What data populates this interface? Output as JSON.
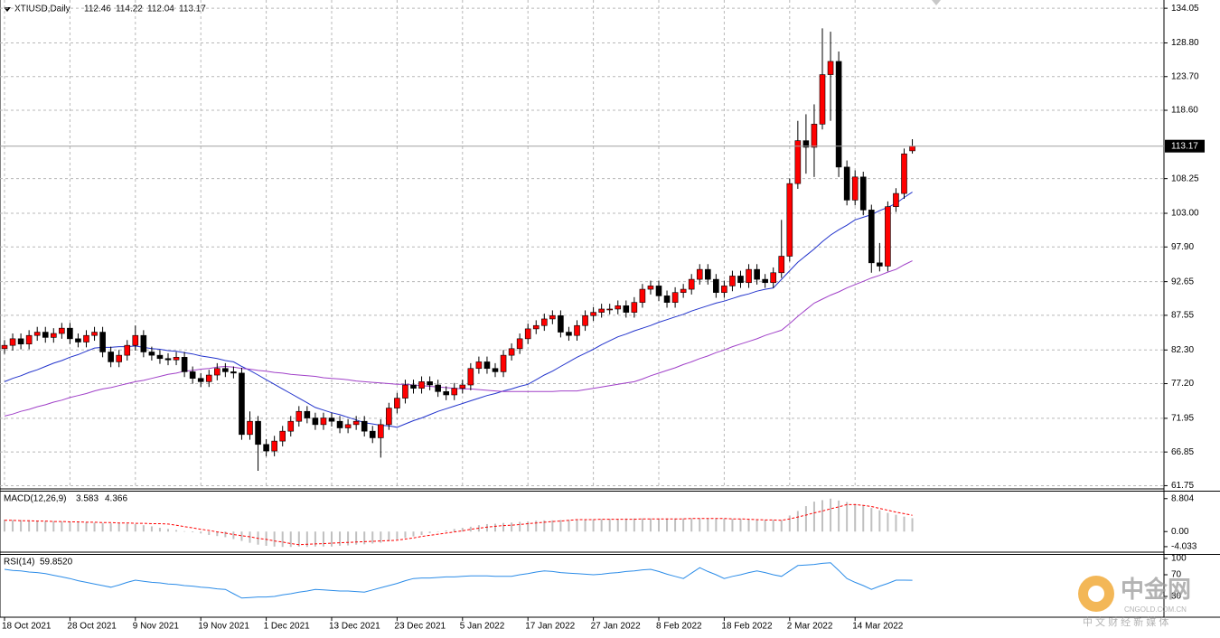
{
  "chart_data": [
    {
      "type": "candlestick",
      "title": "XTIUSD,Daily",
      "categories": [
        "18 Oct 2021",
        null,
        null,
        null,
        null,
        null,
        null,
        null,
        "28 Oct 2021",
        null,
        null,
        null,
        null,
        null,
        null,
        null,
        "9 Nov 2021",
        null,
        null,
        null,
        null,
        null,
        null,
        null,
        "19 Nov 2021",
        null,
        null,
        null,
        null,
        null,
        null,
        null,
        "1 Dec 2021",
        null,
        null,
        null,
        null,
        null,
        null,
        null,
        "13 Dec 2021",
        null,
        null,
        null,
        null,
        null,
        null,
        null,
        "23 Dec 2021",
        null,
        null,
        null,
        null,
        null,
        null,
        null,
        "5 Jan 2022",
        null,
        null,
        null,
        null,
        null,
        null,
        null,
        "17 Jan 2022",
        null,
        null,
        null,
        null,
        null,
        null,
        null,
        "27 Jan 2022",
        null,
        null,
        null,
        null,
        null,
        null,
        null,
        "8 Feb 2022",
        null,
        null,
        null,
        null,
        null,
        null,
        null,
        "18 Feb 2022",
        null,
        null,
        null,
        null,
        null,
        null,
        null,
        "2 Mar 2022",
        null,
        null,
        null,
        null,
        null,
        null,
        null,
        "14 Mar 2022",
        null,
        null,
        null,
        null,
        null,
        null,
        null
      ],
      "open": [
        82.5,
        83.0,
        84.0,
        83.2,
        84.5,
        85.0,
        84.2,
        84.8,
        85.6,
        84.0,
        83.5,
        84.5,
        85.0,
        82.0,
        80.5,
        81.5,
        83.0,
        84.5,
        82.0,
        81.5,
        81.0,
        80.8,
        81.2,
        79.0,
        78.0,
        77.5,
        78.5,
        79.5,
        79.0,
        78.8,
        69.5,
        71.5,
        68.0,
        67.0,
        68.5,
        70.0,
        71.5,
        73.0,
        72.0,
        71.0,
        72.0,
        71.5,
        70.5,
        71.0,
        71.5,
        70.0,
        69.0,
        71.0,
        73.5,
        75.0,
        77.0,
        76.5,
        77.5,
        77.0,
        76.0,
        75.5,
        76.5,
        77.0,
        79.5,
        80.5,
        79.5,
        79.0,
        81.5,
        82.5,
        84.0,
        85.5,
        86.0,
        87.0,
        87.5,
        85.0,
        84.5,
        86.0,
        87.5,
        88.0,
        88.5,
        88.5,
        89.0,
        88.0,
        89.5,
        91.5,
        92.0,
        90.5,
        89.5,
        91.0,
        91.5,
        93.0,
        94.5,
        93.0,
        91.0,
        92.0,
        93.5,
        92.5,
        94.5,
        93.0,
        92.5,
        94.0,
        96.5,
        107.5,
        114.0,
        113.0,
        116.5,
        124.0,
        126.0,
        110.0,
        105.0,
        108.5,
        103.5,
        95.5,
        95.0,
        104.0,
        106.0,
        112.46
      ],
      "high": [
        83.8,
        84.8,
        84.8,
        85.3,
        85.8,
        85.8,
        85.6,
        86.4,
        86.4,
        84.8,
        85.3,
        85.8,
        85.8,
        82.8,
        82.3,
        83.8,
        86.0,
        85.3,
        82.8,
        82.3,
        81.8,
        82.0,
        82.0,
        79.8,
        78.8,
        79.3,
        80.3,
        80.3,
        79.8,
        79.6,
        73.0,
        72.3,
        68.8,
        69.3,
        70.8,
        72.3,
        73.8,
        73.8,
        72.8,
        72.8,
        72.8,
        72.3,
        71.8,
        72.3,
        72.3,
        70.8,
        71.8,
        74.3,
        75.8,
        77.8,
        77.8,
        78.3,
        78.3,
        77.8,
        76.8,
        77.3,
        77.8,
        80.3,
        81.3,
        81.3,
        80.3,
        82.3,
        83.3,
        84.8,
        86.3,
        86.8,
        87.8,
        88.3,
        88.3,
        85.8,
        86.8,
        88.3,
        88.8,
        89.3,
        89.3,
        89.8,
        89.8,
        90.3,
        92.3,
        92.8,
        92.8,
        91.3,
        91.8,
        92.3,
        93.8,
        95.3,
        95.3,
        93.8,
        92.8,
        94.3,
        94.3,
        95.3,
        95.3,
        93.8,
        94.8,
        102.0,
        108.3,
        117.0,
        118.0,
        119.5,
        131.0,
        130.5,
        127.5,
        111.0,
        109.5,
        109.3,
        104.3,
        98.5,
        104.8,
        106.8,
        112.8,
        114.22
      ],
      "low": [
        81.7,
        82.2,
        82.4,
        82.4,
        83.7,
        83.4,
        83.4,
        84.0,
        83.2,
        82.7,
        82.7,
        83.7,
        81.2,
        79.7,
        79.7,
        80.7,
        82.2,
        81.2,
        80.7,
        80.2,
        80.0,
        80.0,
        78.2,
        77.2,
        76.7,
        76.7,
        77.7,
        78.2,
        78.0,
        68.7,
        68.7,
        64.0,
        66.2,
        66.2,
        67.7,
        69.2,
        70.7,
        71.2,
        70.2,
        70.2,
        70.7,
        69.7,
        69.7,
        70.2,
        69.2,
        68.2,
        66.0,
        70.2,
        72.7,
        74.2,
        75.7,
        75.7,
        76.2,
        75.2,
        74.7,
        74.7,
        75.7,
        76.2,
        78.7,
        78.7,
        78.2,
        78.2,
        80.7,
        81.7,
        83.2,
        84.7,
        85.2,
        86.2,
        84.2,
        83.7,
        83.7,
        85.2,
        86.7,
        87.2,
        87.7,
        87.7,
        87.2,
        87.2,
        88.7,
        90.7,
        89.7,
        88.7,
        88.7,
        90.2,
        90.7,
        92.2,
        92.2,
        90.2,
        90.2,
        91.2,
        91.7,
        91.7,
        92.2,
        91.7,
        91.7,
        93.2,
        95.7,
        106.7,
        109.0,
        108.5,
        115.7,
        117.0,
        108.5,
        104.2,
        104.2,
        102.7,
        94.0,
        94.2,
        94.2,
        103.2,
        105.2,
        112.04
      ],
      "close": [
        83.0,
        84.0,
        83.2,
        84.5,
        85.0,
        84.2,
        84.8,
        85.6,
        84.0,
        83.5,
        84.5,
        85.0,
        82.0,
        80.5,
        81.5,
        83.0,
        84.5,
        82.0,
        81.5,
        81.0,
        80.8,
        81.2,
        79.0,
        78.0,
        77.5,
        78.5,
        79.5,
        79.0,
        78.8,
        69.5,
        71.5,
        68.0,
        67.0,
        68.5,
        70.0,
        71.5,
        73.0,
        72.0,
        71.0,
        72.0,
        71.5,
        70.5,
        71.0,
        71.5,
        70.0,
        69.0,
        71.0,
        73.5,
        75.0,
        77.0,
        76.5,
        77.5,
        77.0,
        76.0,
        75.5,
        76.5,
        77.0,
        79.5,
        80.5,
        79.5,
        79.0,
        81.5,
        82.5,
        84.0,
        85.5,
        86.0,
        87.0,
        87.5,
        85.0,
        84.5,
        86.0,
        87.5,
        88.0,
        88.5,
        88.5,
        89.0,
        88.0,
        89.5,
        91.5,
        92.0,
        90.5,
        89.5,
        91.0,
        91.5,
        93.0,
        94.5,
        93.0,
        91.0,
        92.0,
        93.5,
        92.5,
        94.5,
        93.0,
        92.5,
        94.0,
        96.5,
        107.5,
        114.0,
        113.0,
        116.5,
        124.0,
        126.0,
        110.0,
        105.0,
        108.5,
        103.5,
        95.5,
        95.0,
        104.0,
        106.0,
        112.0,
        113.17
      ],
      "up_color": "#ff0000",
      "down_color": "#000000",
      "series": [
        {
          "color": "#2233cc",
          "values": [
            77.5,
            78.0,
            78.4,
            78.9,
            79.3,
            79.8,
            80.3,
            80.7,
            81.2,
            81.6,
            82.1,
            82.6,
            82.7,
            82.7,
            82.8,
            82.8,
            82.9,
            82.7,
            82.5,
            82.4,
            82.2,
            82.1,
            81.9,
            81.7,
            81.4,
            81.2,
            81.0,
            80.7,
            80.5,
            79.8,
            79.2,
            78.5,
            77.8,
            77.1,
            76.4,
            75.7,
            75.0,
            74.3,
            73.6,
            73.2,
            72.8,
            72.5,
            72.1,
            71.7,
            71.3,
            71.1,
            70.9,
            70.8,
            70.6,
            71.1,
            71.6,
            72.0,
            72.5,
            73.0,
            73.4,
            73.8,
            74.2,
            74.6,
            75.0,
            75.4,
            75.7,
            76.1,
            76.4,
            76.8,
            77.1,
            77.8,
            78.5,
            79.1,
            79.8,
            80.5,
            81.2,
            81.8,
            82.4,
            83.1,
            83.7,
            84.3,
            84.7,
            85.2,
            85.6,
            86.0,
            86.5,
            86.9,
            87.3,
            87.7,
            88.2,
            88.6,
            89.0,
            89.4,
            89.7,
            90.1,
            90.5,
            90.8,
            91.2,
            91.5,
            91.7,
            93.0,
            94.3,
            95.6,
            96.6,
            97.6,
            98.7,
            99.7,
            100.5,
            101.2,
            102.0,
            102.4,
            102.8,
            103.4,
            103.9,
            104.5,
            105.4,
            106.2
          ]
        },
        {
          "color": "#a040c8",
          "values": [
            72.3,
            72.6,
            73.0,
            73.3,
            73.7,
            74.0,
            74.4,
            74.7,
            75.1,
            75.4,
            75.7,
            76.1,
            76.4,
            76.6,
            76.9,
            77.2,
            77.5,
            77.7,
            78.0,
            78.3,
            78.6,
            78.8,
            79.1,
            79.2,
            79.4,
            79.5,
            79.7,
            79.8,
            79.7,
            79.5,
            79.4,
            79.2,
            79.1,
            78.9,
            78.8,
            78.6,
            78.5,
            78.4,
            78.3,
            78.1,
            78.0,
            77.9,
            77.8,
            77.6,
            77.5,
            77.4,
            77.3,
            77.2,
            77.1,
            77.1,
            77.0,
            76.9,
            76.8,
            76.7,
            76.6,
            76.5,
            76.4,
            76.4,
            76.3,
            76.2,
            76.1,
            76.0,
            76.0,
            76.0,
            76.0,
            76.0,
            76.0,
            76.0,
            76.1,
            76.1,
            76.1,
            76.3,
            76.5,
            76.7,
            76.9,
            77.1,
            77.3,
            77.5,
            77.9,
            78.4,
            78.8,
            79.2,
            79.6,
            80.1,
            80.5,
            81.0,
            81.4,
            81.9,
            82.3,
            82.8,
            83.2,
            83.6,
            84.0,
            84.5,
            84.9,
            85.3,
            86.3,
            87.4,
            88.4,
            89.4,
            90.0,
            90.6,
            91.1,
            91.7,
            92.2,
            92.7,
            93.2,
            93.6,
            94.1,
            94.5,
            95.2,
            95.8
          ]
        }
      ],
      "ylim": [
        61.4,
        135.3
      ],
      "yticks": [
        134.05,
        {
          "value": 128.8,
          "label": "128.80"
        },
        {
          "value": 123.7,
          "label": "123.70"
        },
        {
          "value": 118.6,
          "label": "118.60"
        },
        {
          "value": 108.25,
          "label": "108.25"
        },
        {
          "value": 103,
          "label": "103.00"
        },
        {
          "value": 97.9,
          "label": "97.90"
        },
        {
          "value": 92.65,
          "label": "92.65"
        },
        {
          "value": 87.55,
          "label": "87.55"
        },
        {
          "value": 82.3,
          "label": "82.30"
        },
        {
          "value": 77.2,
          "label": "77.20"
        },
        {
          "value": 71.95,
          "label": "71.95"
        },
        {
          "value": 66.85,
          "label": "66.85"
        },
        {
          "value": 61.75,
          "label": "61.75"
        }
      ],
      "grid": true
    },
    {
      "type": "macd",
      "title": "MACD(12,26,9)",
      "series": [
        {
          "color": "#c0c0c0",
          "values": [
            3.2,
            3.1,
            3.1,
            3.0,
            2.9,
            2.8,
            2.8,
            2.7,
            2.6,
            2.5,
            2.5,
            2.4,
            2.3,
            2.2,
            2.2,
            2.1,
            2.0,
            1.7,
            1.4,
            1.0,
            0.7,
            0.4,
            0.1,
            -0.2,
            -0.5,
            -0.9,
            -1.2,
            -1.5,
            -2.0,
            -2.5,
            -3.0,
            -3.5,
            -3.8,
            -4.0,
            -4.1,
            -4.1,
            -4.0,
            -4.1,
            -4.0,
            -4.0,
            -4.0,
            -3.8,
            -3.7,
            -3.5,
            -3.4,
            -3.2,
            -3.0,
            -2.6,
            -2.1,
            -1.7,
            -1.3,
            -0.9,
            -0.4,
            0.0,
            0.3,
            0.7,
            1.0,
            1.3,
            1.7,
            2.0,
            2.1,
            2.3,
            2.4,
            2.6,
            2.7,
            2.9,
            3.0,
            3.0,
            3.1,
            3.1,
            3.2,
            3.2,
            3.3,
            3.3,
            3.4,
            3.4,
            3.5,
            3.5,
            3.5,
            3.5,
            3.5,
            3.5,
            3.5,
            3.5,
            3.5,
            3.5,
            3.5,
            3.5,
            3.5,
            3.4,
            3.4,
            3.3,
            3.2,
            3.1,
            3.1,
            3.0,
            4.3,
            5.5,
            6.8,
            8.0,
            8.4,
            8.804,
            8.3,
            7.9,
            7.4,
            7.0,
            6.3,
            5.7,
            5.0,
            4.5,
            4.0,
            3.583
          ]
        },
        {
          "color": "#ff0000",
          "values": [
            3.0,
            3.0,
            2.9,
            2.9,
            2.8,
            2.8,
            2.7,
            2.7,
            2.6,
            2.6,
            2.5,
            2.5,
            2.4,
            2.4,
            2.3,
            2.3,
            2.2,
            2.2,
            2.1,
            2.1,
            2.0,
            1.7,
            1.3,
            1.0,
            0.6,
            0.3,
            -0.1,
            -0.4,
            -0.8,
            -1.1,
            -1.4,
            -1.8,
            -2.1,
            -2.5,
            -2.8,
            -3.2,
            -3.5,
            -3.4,
            -3.3,
            -3.2,
            -3.1,
            -3.0,
            -2.9,
            -2.8,
            -2.7,
            -2.6,
            -2.5,
            -2.4,
            -2.3,
            -2.0,
            -1.7,
            -1.3,
            -1.0,
            -0.7,
            -0.4,
            -0.1,
            0.2,
            0.6,
            0.9,
            1.2,
            1.4,
            1.6,
            1.7,
            1.9,
            2.1,
            2.3,
            2.5,
            2.7,
            2.8,
            3.0,
            3.2,
            3.2,
            3.2,
            3.3,
            3.3,
            3.3,
            3.3,
            3.3,
            3.4,
            3.4,
            3.4,
            3.4,
            3.4,
            3.4,
            3.5,
            3.5,
            3.5,
            3.5,
            3.5,
            3.4,
            3.4,
            3.3,
            3.2,
            3.1,
            3.1,
            3.0,
            3.4,
            3.9,
            4.4,
            5.0,
            5.5,
            6.1,
            6.6,
            7.2,
            7.2,
            7.0,
            6.7,
            6.2,
            5.7,
            5.2,
            4.8,
            4.366
          ]
        }
      ],
      "ylim": [
        -5.5,
        10.2
      ],
      "yticks": [
        8.804,
        {
          "value": 0,
          "label": "0.00"
        },
        -4.033
      ]
    },
    {
      "type": "line",
      "title": "RSI(14)",
      "color": "#2b8ce8",
      "values": [
        80,
        78,
        77,
        75,
        74,
        72,
        69,
        66,
        63,
        59,
        56,
        53,
        50,
        47,
        51,
        56,
        60,
        58,
        56,
        55,
        53,
        52,
        50,
        49,
        47,
        46,
        44,
        43,
        35,
        27,
        28,
        29,
        29,
        30,
        33,
        35,
        38,
        40,
        43,
        42,
        41,
        40,
        40,
        39,
        38,
        42,
        46,
        50,
        54,
        59,
        63,
        64,
        64,
        65,
        66,
        66,
        67,
        68,
        68,
        68,
        67,
        67,
        67,
        70,
        72,
        75,
        77,
        76,
        74,
        73,
        72,
        71,
        70,
        71,
        73,
        74,
        76,
        77,
        79,
        80,
        76,
        71,
        67,
        63,
        73,
        83,
        76,
        70,
        63,
        67,
        70,
        74,
        77,
        74,
        70,
        67,
        77,
        87,
        88,
        89,
        91,
        92,
        78,
        63,
        56,
        50,
        43,
        49,
        54,
        60,
        60,
        59.852
      ],
      "value_label": "59.8520",
      "ylim": [
        0,
        100
      ],
      "yticks": [
        100,
        70,
        30
      ]
    }
  ],
  "watermark": {
    "name": "中金网",
    "site": "CNGOLD.COM.CN",
    "slogan": "中 文 财 经 新 媒 体"
  }
}
